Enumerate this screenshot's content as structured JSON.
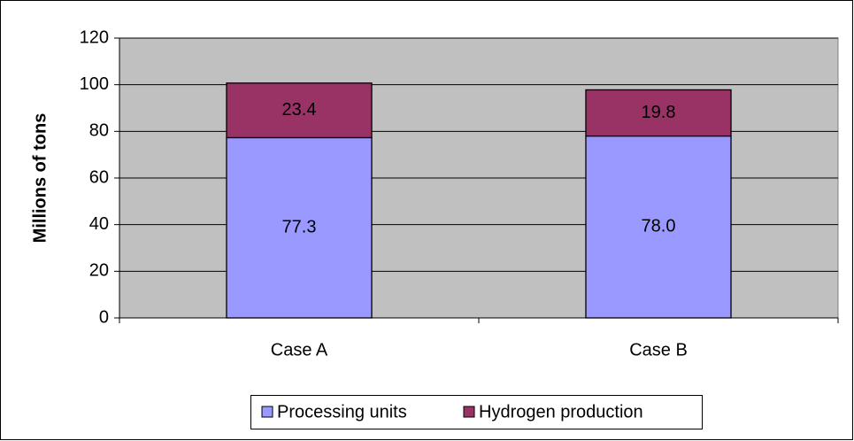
{
  "chart_data": {
    "type": "stacked-bar",
    "y_label": "Millions of tons",
    "categories": [
      "Case A",
      "Case B"
    ],
    "series": [
      {
        "name": "Processing units",
        "color": "#9999ff",
        "values": [
          77.3,
          78
        ],
        "value_labels": [
          "77.3",
          "78.0"
        ]
      },
      {
        "name": "Hydrogen production",
        "color": "#993366",
        "values": [
          23.4,
          19.8
        ],
        "value_labels": [
          "23.4",
          "19.8"
        ]
      }
    ],
    "ylim": [
      0,
      120
    ],
    "yticks": [
      0,
      20,
      40,
      60,
      80,
      100,
      120
    ],
    "grid": true,
    "legend": "bottom"
  }
}
